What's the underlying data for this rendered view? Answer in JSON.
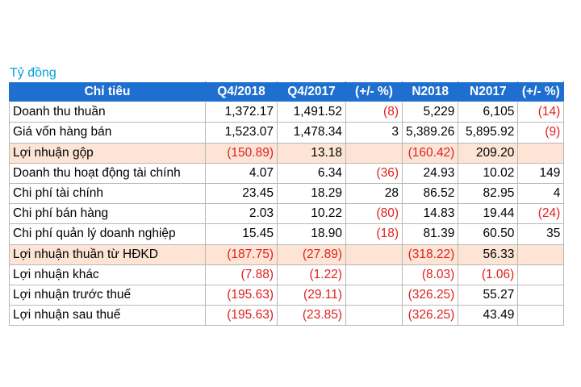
{
  "unit_label": "Tỷ đồng",
  "headers": [
    "Chỉ tiêu",
    "Q4/2018",
    "Q4/2017",
    "(+/- %)",
    "N2018",
    "N2017",
    "(+/- %)"
  ],
  "rows": [
    {
      "label": "Doanh thu thuần",
      "highlight": false,
      "cells": [
        {
          "v": "1,372.17",
          "neg": false
        },
        {
          "v": "1,491.52",
          "neg": false
        },
        {
          "v": "(8)",
          "neg": true
        },
        {
          "v": "5,229",
          "neg": false
        },
        {
          "v": "6,105",
          "neg": false
        },
        {
          "v": "(14)",
          "neg": true
        }
      ]
    },
    {
      "label": "Giá vốn hàng bán",
      "highlight": false,
      "cells": [
        {
          "v": "1,523.07",
          "neg": false
        },
        {
          "v": "1,478.34",
          "neg": false
        },
        {
          "v": "3",
          "neg": false
        },
        {
          "v": "5,389.26",
          "neg": false
        },
        {
          "v": "5,895.92",
          "neg": false
        },
        {
          "v": "(9)",
          "neg": true
        }
      ]
    },
    {
      "label": "Lợi nhuận gộp",
      "highlight": true,
      "cells": [
        {
          "v": "(150.89)",
          "neg": true
        },
        {
          "v": "13.18",
          "neg": false
        },
        {
          "v": "",
          "neg": false
        },
        {
          "v": "(160.42)",
          "neg": true
        },
        {
          "v": "209.20",
          "neg": false
        },
        {
          "v": "",
          "neg": false
        }
      ]
    },
    {
      "label": "Doanh thu hoạt động tài chính",
      "highlight": false,
      "cells": [
        {
          "v": "4.07",
          "neg": false
        },
        {
          "v": "6.34",
          "neg": false
        },
        {
          "v": "(36)",
          "neg": true
        },
        {
          "v": "24.93",
          "neg": false
        },
        {
          "v": "10.02",
          "neg": false
        },
        {
          "v": "149",
          "neg": false
        }
      ]
    },
    {
      "label": "Chi phí tài chính",
      "highlight": false,
      "cells": [
        {
          "v": "23.45",
          "neg": false
        },
        {
          "v": "18.29",
          "neg": false
        },
        {
          "v": "28",
          "neg": false
        },
        {
          "v": "86.52",
          "neg": false
        },
        {
          "v": "82.95",
          "neg": false
        },
        {
          "v": "4",
          "neg": false
        }
      ]
    },
    {
      "label": "Chi phí bán hàng",
      "highlight": false,
      "cells": [
        {
          "v": "2.03",
          "neg": false
        },
        {
          "v": "10.22",
          "neg": false
        },
        {
          "v": "(80)",
          "neg": true
        },
        {
          "v": "14.83",
          "neg": false
        },
        {
          "v": "19.44",
          "neg": false
        },
        {
          "v": "(24)",
          "neg": true
        }
      ]
    },
    {
      "label": "Chi phí quản lý doanh nghiệp",
      "highlight": false,
      "cells": [
        {
          "v": "15.45",
          "neg": false
        },
        {
          "v": "18.90",
          "neg": false
        },
        {
          "v": "(18)",
          "neg": true
        },
        {
          "v": "81.39",
          "neg": false
        },
        {
          "v": "60.50",
          "neg": false
        },
        {
          "v": "35",
          "neg": false
        }
      ]
    },
    {
      "label": "Lợi nhuận thuần từ HĐKD",
      "highlight": true,
      "cells": [
        {
          "v": "(187.75)",
          "neg": true
        },
        {
          "v": "(27.89)",
          "neg": true
        },
        {
          "v": "",
          "neg": false
        },
        {
          "v": "(318.22)",
          "neg": true
        },
        {
          "v": "56.33",
          "neg": false
        },
        {
          "v": "",
          "neg": false
        }
      ]
    },
    {
      "label": "Lợi nhuận khác",
      "highlight": false,
      "cells": [
        {
          "v": "(7.88)",
          "neg": true
        },
        {
          "v": "(1.22)",
          "neg": true
        },
        {
          "v": "",
          "neg": false
        },
        {
          "v": "(8.03)",
          "neg": true
        },
        {
          "v": "(1.06)",
          "neg": true
        },
        {
          "v": "",
          "neg": false
        }
      ]
    },
    {
      "label": "Lợi nhuận trước thuế",
      "highlight": false,
      "cells": [
        {
          "v": "(195.63)",
          "neg": true
        },
        {
          "v": "(29.11)",
          "neg": true
        },
        {
          "v": "",
          "neg": false
        },
        {
          "v": "(326.25)",
          "neg": true
        },
        {
          "v": "55.27",
          "neg": false
        },
        {
          "v": "",
          "neg": false
        }
      ]
    },
    {
      "label": "Lợi nhuận sau thuế",
      "highlight": false,
      "cells": [
        {
          "v": "(195.63)",
          "neg": true
        },
        {
          "v": "(23.85)",
          "neg": true
        },
        {
          "v": "",
          "neg": false
        },
        {
          "v": "(326.25)",
          "neg": true
        },
        {
          "v": "43.49",
          "neg": false
        },
        {
          "v": "",
          "neg": false
        }
      ]
    }
  ],
  "colors": {
    "header_bg": "#1f6fd0",
    "highlight_bg": "#fde4d4",
    "negative_text": "#e02020",
    "unit_text": "#00a0e0"
  }
}
